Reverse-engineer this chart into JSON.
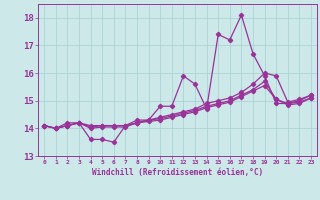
{
  "xlabel": "Windchill (Refroidissement éolien,°C)",
  "x": [
    0,
    1,
    2,
    3,
    4,
    5,
    6,
    7,
    8,
    9,
    10,
    11,
    12,
    13,
    14,
    15,
    16,
    17,
    18,
    19,
    20,
    21,
    22,
    23
  ],
  "line1": [
    14.1,
    14.0,
    14.2,
    14.2,
    13.6,
    13.6,
    13.5,
    14.1,
    14.3,
    14.3,
    14.8,
    14.8,
    15.9,
    15.6,
    14.7,
    17.4,
    17.2,
    18.1,
    16.7,
    15.9,
    14.9,
    14.9,
    15.0,
    15.2
  ],
  "line2": [
    14.1,
    14.0,
    14.1,
    14.2,
    14.1,
    14.1,
    14.1,
    14.1,
    14.2,
    14.3,
    14.4,
    14.5,
    14.6,
    14.7,
    14.9,
    15.0,
    15.1,
    15.3,
    15.6,
    16.0,
    15.9,
    14.95,
    15.05,
    15.2
  ],
  "line3": [
    14.1,
    14.0,
    14.1,
    14.2,
    14.05,
    14.1,
    14.1,
    14.1,
    14.2,
    14.3,
    14.35,
    14.45,
    14.55,
    14.65,
    14.8,
    14.9,
    15.0,
    15.2,
    15.4,
    15.7,
    15.05,
    14.9,
    14.95,
    15.1
  ],
  "line4": [
    14.1,
    14.0,
    14.1,
    14.2,
    14.0,
    14.05,
    14.05,
    14.05,
    14.2,
    14.25,
    14.3,
    14.4,
    14.5,
    14.6,
    14.75,
    14.85,
    14.95,
    15.15,
    15.35,
    15.55,
    15.05,
    14.85,
    14.9,
    15.1
  ],
  "line_color": "#993399",
  "bg_color": "#cce8e8",
  "grid_color": "#aad4d4",
  "ylim": [
    13.0,
    18.5
  ],
  "yticks": [
    13,
    14,
    15,
    16,
    17,
    18
  ],
  "xlim": [
    -0.5,
    23.5
  ]
}
